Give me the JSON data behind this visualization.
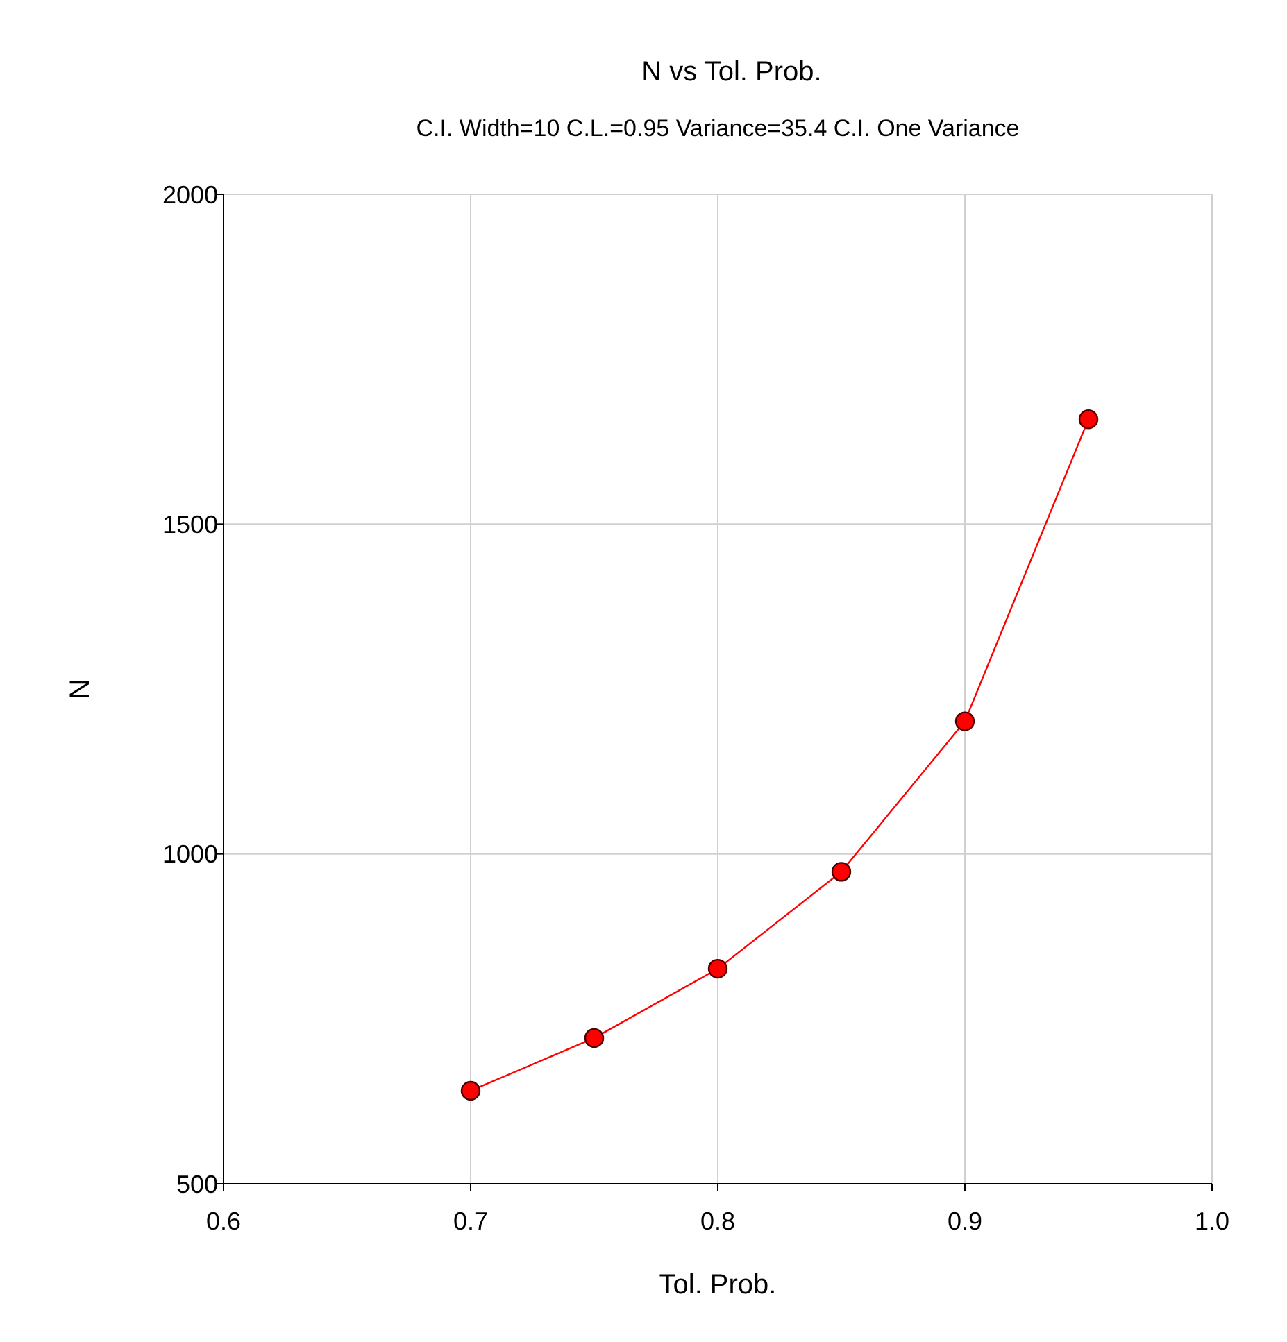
{
  "chart_data": {
    "type": "line",
    "title": "N vs Tol. Prob.",
    "subtitle": "C.I. Width=10 C.L.=0.95 Variance=35.4 C.I. One Variance",
    "xlabel": "Tol. Prob.",
    "ylabel": "N",
    "x": [
      0.7,
      0.75,
      0.8,
      0.85,
      0.9,
      0.95
    ],
    "series": [
      {
        "color": "#ff0000",
        "values": [
          641,
          721,
          826,
          973,
          1201,
          1659
        ]
      }
    ],
    "xlim": [
      0.6,
      1.0
    ],
    "xticks": [
      {
        "value": 0.6,
        "label": "0.6"
      },
      {
        "value": 0.7,
        "label": "0.7"
      },
      {
        "value": 0.8,
        "label": "0.8"
      },
      {
        "value": 0.9,
        "label": "0.9"
      },
      {
        "value": 1.0,
        "label": "1.0"
      }
    ],
    "ylim": [
      500,
      2000
    ],
    "yticks": [
      500,
      1000,
      1500,
      2000
    ],
    "grid": true,
    "marker": "circle",
    "line_style": "solid"
  }
}
